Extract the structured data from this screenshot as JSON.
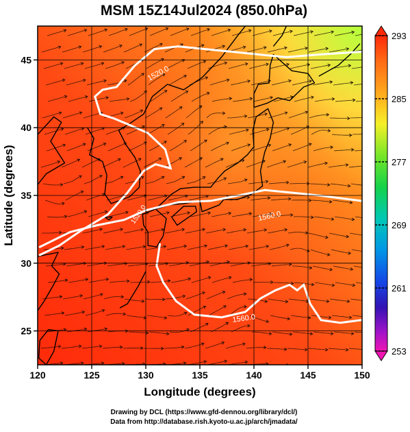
{
  "title": "MSM 15Z14Jul2024 (850.0hPa)",
  "xlabel": "Longitude (degrees)",
  "ylabel": "Latitude  (degrees)",
  "xticks": [
    "120",
    "125",
    "130",
    "135",
    "140",
    "145",
    "150"
  ],
  "yticks": [
    "25",
    "30",
    "35",
    "40",
    "45"
  ],
  "colorbar": {
    "labels": [
      "293",
      "285",
      "277",
      "269",
      "261",
      "253"
    ],
    "range": [
      253,
      293
    ]
  },
  "contour_labels": [
    "1520.0",
    "1520.0",
    "1560.0",
    "1560.0"
  ],
  "credits": [
    "Drawing by DCL (https://www.gfd-dennou.org/library/dcl/)",
    "Data from http://database.rish.kyoto-u.ac.jp/arch/jmadata/"
  ],
  "colors": {
    "field_warm": "#ff3c14",
    "field_mid": "#ff6a1e",
    "field_cool": "#f0ff3c",
    "contour": "#ffffff",
    "coastline": "#000000"
  }
}
